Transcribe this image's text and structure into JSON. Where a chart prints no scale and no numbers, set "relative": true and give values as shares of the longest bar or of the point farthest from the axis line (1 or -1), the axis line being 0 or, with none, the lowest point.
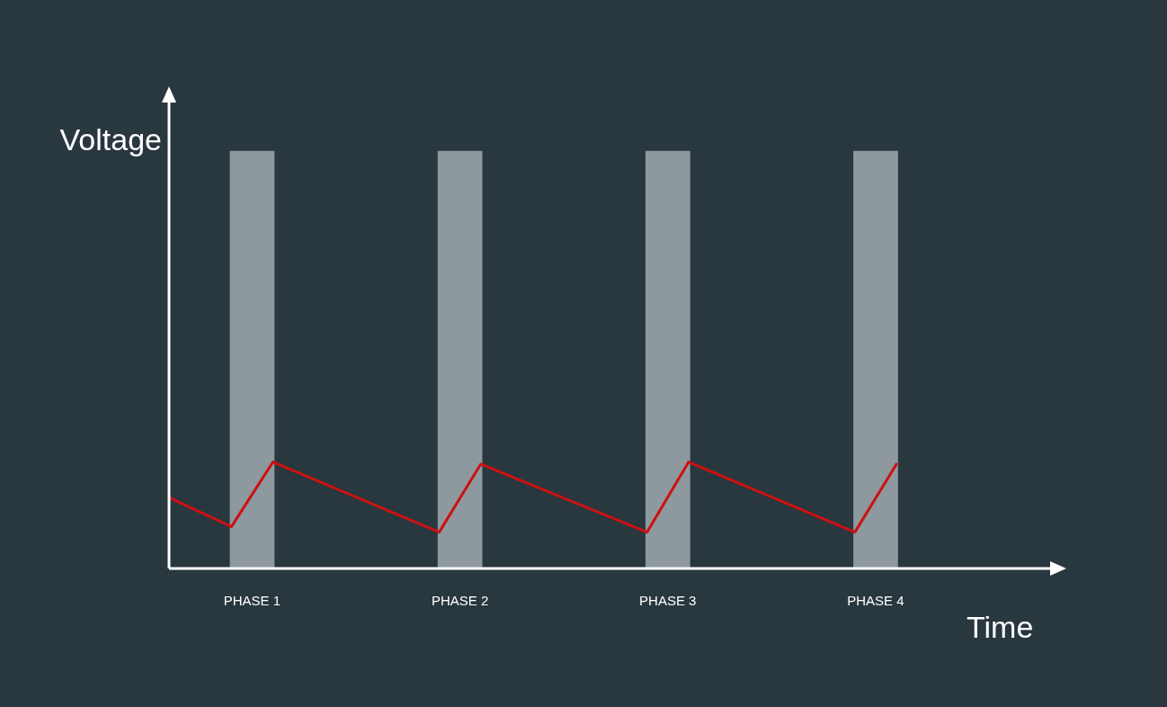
{
  "chart_data": {
    "type": "line",
    "relative": true,
    "xlabel": "Time",
    "ylabel": "Voltage",
    "categories": [
      null,
      null,
      null,
      null,
      "PHASE 1",
      null,
      null,
      null,
      null,
      null,
      null,
      null,
      null,
      null,
      "PHASE 2",
      null,
      null,
      null,
      null,
      null,
      null,
      null,
      null,
      null,
      "PHASE 3",
      null,
      null,
      null,
      null,
      null,
      null,
      null,
      null,
      null,
      "PHASE 4",
      null,
      null,
      null,
      null,
      null,
      null,
      null,
      null,
      null
    ],
    "series": [
      {
        "type": "bar",
        "color": "#8e999f",
        "values": [
          null,
          null,
          null,
          null,
          1,
          null,
          null,
          null,
          null,
          null,
          null,
          null,
          null,
          null,
          1,
          null,
          null,
          null,
          null,
          null,
          null,
          null,
          null,
          null,
          1,
          null,
          null,
          null,
          null,
          null,
          null,
          null,
          null,
          null,
          1,
          null,
          null,
          null,
          null,
          null,
          null,
          null,
          null,
          null
        ]
      },
      {
        "color": "#cc1111",
        "values": [
          0.17,
          null,
          null,
          0.1,
          null,
          0.255,
          null,
          null,
          null,
          null,
          null,
          null,
          null,
          0.087,
          null,
          0.25,
          null,
          null,
          null,
          null,
          null,
          null,
          null,
          0.087,
          null,
          0.255,
          null,
          null,
          null,
          null,
          null,
          null,
          null,
          0.087,
          null,
          0.25,
          null,
          null,
          null,
          null,
          null,
          null,
          null,
          null
        ]
      }
    ],
    "grid": false,
    "legend": false,
    "marker": "none",
    "line_style": "solid"
  }
}
